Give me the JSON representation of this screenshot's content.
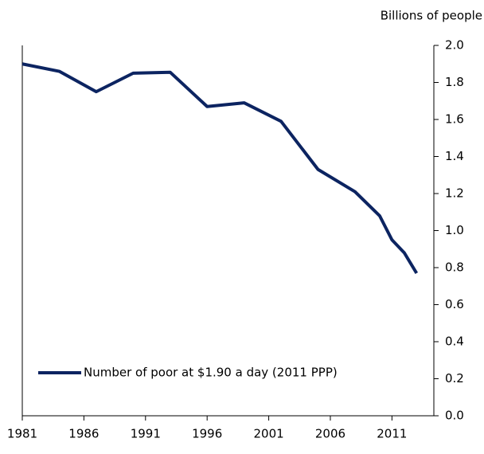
{
  "chart_data": {
    "type": "line",
    "y_axis_label": "Billions of people",
    "x": [
      1981,
      1984,
      1987,
      1990,
      1993,
      1996,
      1999,
      2002,
      2005,
      2008,
      2010,
      2011,
      2012,
      2013
    ],
    "series": [
      {
        "name": "Number of poor at $1.90 a day (2011 PPP)",
        "color": "#0c2461",
        "values": [
          1.9,
          1.86,
          1.75,
          1.85,
          1.855,
          1.67,
          1.69,
          1.59,
          1.33,
          1.21,
          1.08,
          0.95,
          0.88,
          0.77
        ]
      }
    ],
    "xlim": [
      1981,
      2014.4
    ],
    "xticks": [
      1981,
      1986,
      1991,
      1996,
      2001,
      2006,
      2011
    ],
    "ylim": [
      0,
      2
    ],
    "yticks": [
      {
        "value": 0,
        "label": "0.0"
      },
      0.2,
      0.4,
      0.6,
      0.8,
      {
        "value": 1,
        "label": "1.0"
      },
      1.2,
      1.4,
      1.6,
      1.8,
      {
        "value": 2,
        "label": "2.0"
      }
    ],
    "y_axis_side": "right",
    "legend_position": "lower left",
    "grid": false
  }
}
